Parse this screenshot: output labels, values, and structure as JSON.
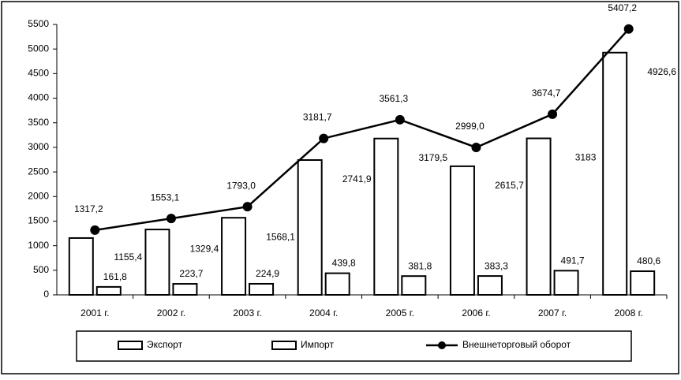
{
  "chart_data": {
    "type": "bar-line",
    "categories": [
      "2001 г.",
      "2002 г.",
      "2003 г.",
      "2004 г.",
      "2005 г.",
      "2006 г.",
      "2007 г.",
      "2008 г."
    ],
    "series": [
      {
        "name": "Экспорт",
        "type": "bar",
        "color": "#ffffff",
        "values": [
          1155.4,
          1329.4,
          1568.1,
          2741.9,
          3179.5,
          2615.7,
          3183,
          4926.6
        ],
        "value_labels": [
          "1155,4",
          "1329,4",
          "1568,1",
          "2741,9",
          "3179,5",
          "2615,7",
          "3183",
          "4926,6"
        ]
      },
      {
        "name": "Импорт",
        "type": "bar",
        "color": "#ffffff",
        "values": [
          161.8,
          223.7,
          224.9,
          439.8,
          381.8,
          383.3,
          491.7,
          480.6
        ],
        "value_labels": [
          "161,8",
          "223,7",
          "224,9",
          "439,8",
          "381,8",
          "383,3",
          "491,7",
          "480,6"
        ]
      },
      {
        "name": "Внешнеторговый оборот",
        "type": "line",
        "color": "#000000",
        "values": [
          1317.2,
          1553.1,
          1793.0,
          3181.7,
          3561.3,
          2999.0,
          3674.7,
          5407.2
        ],
        "value_labels": [
          "1317,2",
          "1553,1",
          "1793,0",
          "3181,7",
          "3561,3",
          "2999,0",
          "3674,7",
          "5407,2"
        ]
      }
    ],
    "ylim": [
      0,
      5500
    ],
    "yticks": [
      0,
      500,
      1000,
      1500,
      2000,
      2500,
      3000,
      3500,
      4000,
      4500,
      5000,
      5500
    ],
    "grid": false,
    "legend": "bottom"
  }
}
